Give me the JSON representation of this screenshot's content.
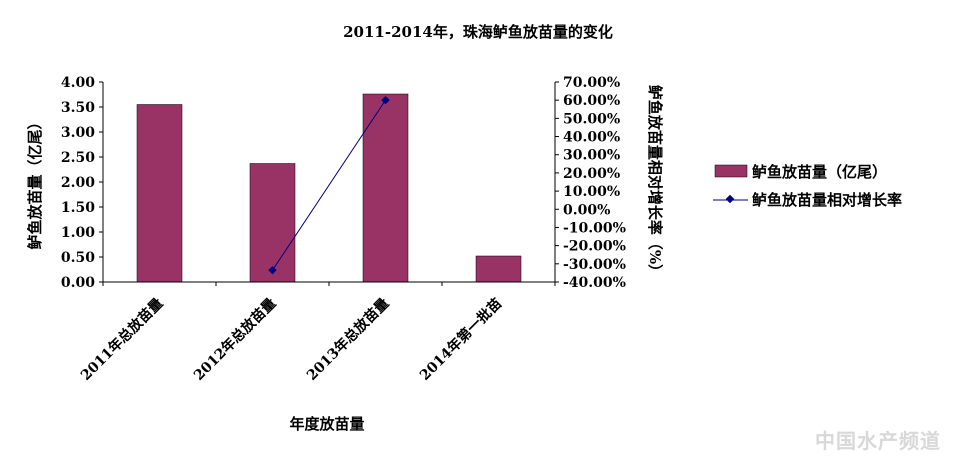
{
  "chart_data": {
    "type": "bar+line",
    "title": "2011-2014年，珠海鲈鱼放苗量的变化",
    "categories": [
      "2011年总放苗量",
      "2012年总放苗量",
      "2013年总放苗量",
      "2014年第一批苗"
    ],
    "xlabel": "年度放苗量",
    "y_left": {
      "label": "鲈鱼放苗量（亿尾）",
      "range": [
        0,
        4
      ],
      "ticks": [
        "0.00",
        "0.50",
        "1.00",
        "1.50",
        "2.00",
        "2.50",
        "3.00",
        "3.50",
        "4.00"
      ]
    },
    "y_right": {
      "label": "鲈鱼放苗量相对增长率（%）",
      "range": [
        -40,
        70
      ],
      "ticks": [
        "-40.00%",
        "-30.00%",
        "-20.00%",
        "-10.00%",
        "0.00%",
        "10.00%",
        "20.00%",
        "30.00%",
        "40.00%",
        "50.00%",
        "60.00%",
        "70.00%"
      ]
    },
    "series": [
      {
        "name": "鲈鱼放苗量（亿尾）",
        "kind": "bar",
        "axis": "left",
        "values": [
          3.55,
          2.37,
          3.76,
          0.52
        ],
        "color": "#993366"
      },
      {
        "name": "鲈鱼放苗量相对增长率",
        "kind": "line",
        "axis": "right",
        "values": [
          null,
          -33.5,
          60.0,
          null
        ],
        "color": "#000080"
      }
    ],
    "legend": "right",
    "grid": false
  },
  "watermark": "中国水产频道"
}
